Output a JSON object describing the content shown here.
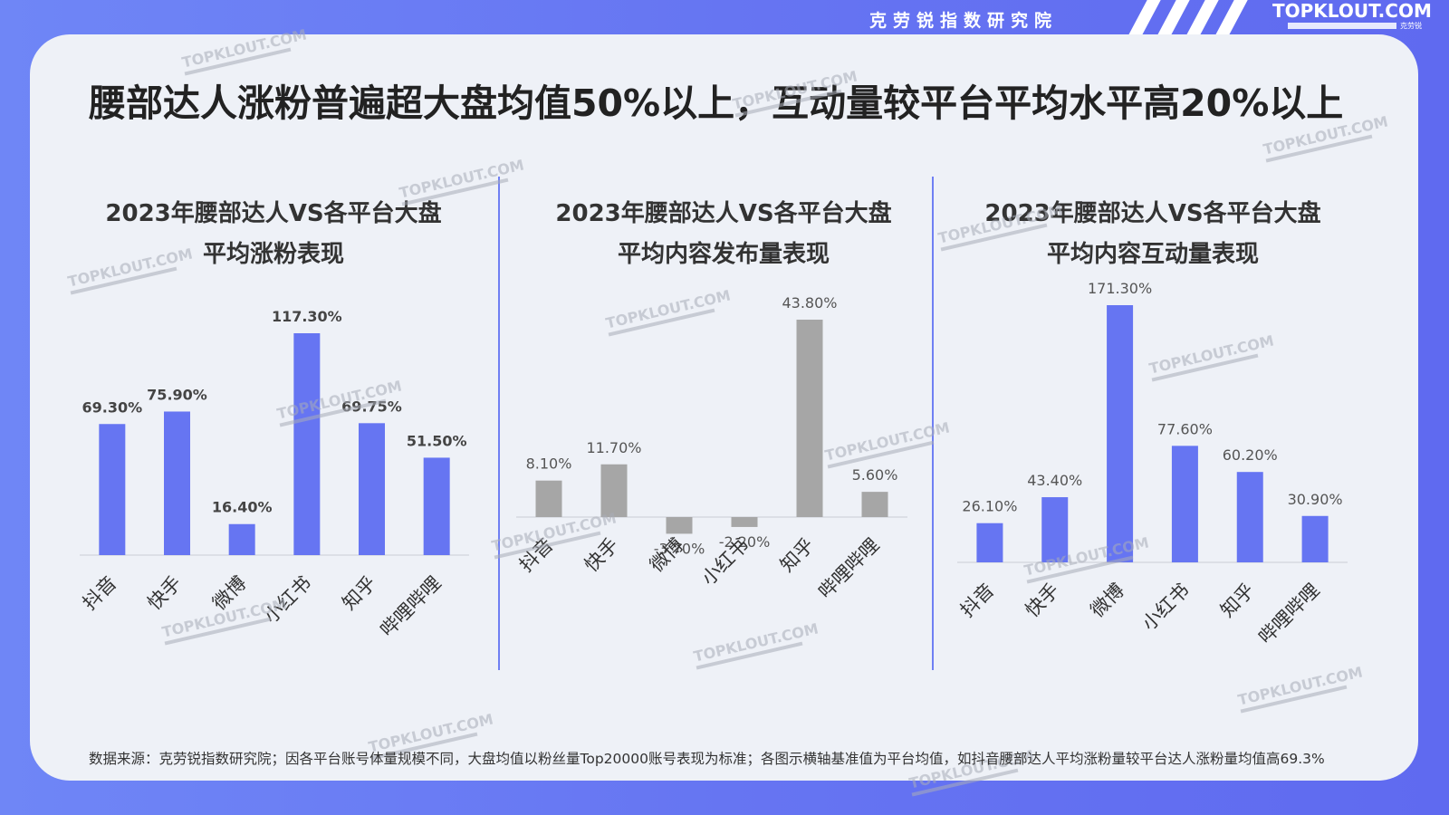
{
  "header": {
    "brand_cn": "克劳锐指数研究院",
    "logo_text": "TOPKLOUT.COM",
    "logo_sub": "克劳锐"
  },
  "page_title": "腰部达人涨粉普遍超大盘均值50%以上，互动量较平台平均水平高20%以上",
  "watermark": "TOPKLOUT.COM",
  "colors": {
    "bg_blue": "#6675f2",
    "bar_blue": "#6675f2",
    "bar_grey": "#a6a6a6",
    "card": "#eef1f7",
    "divider": "#6f7ff3"
  },
  "chart_data": [
    {
      "type": "bar",
      "title_line1": "2023年腰部达人VS各平台大盘",
      "title_line2": "平均涨粉表现",
      "categories": [
        "抖音",
        "快手",
        "微博",
        "小红书",
        "知乎",
        "哔哩哔哩"
      ],
      "values": [
        69.3,
        75.9,
        16.4,
        117.3,
        69.75,
        51.5
      ],
      "labels": [
        "69.30%",
        "75.90%",
        "16.40%",
        "117.30%",
        "69.75%",
        "51.50%"
      ],
      "ylim": [
        0,
        117.3
      ],
      "label_bold": true,
      "color": "#6675f2"
    },
    {
      "type": "bar",
      "title_line1": "2023年腰部达人VS各平台大盘",
      "title_line2": "平均内容发布量表现",
      "categories": [
        "抖音",
        "快手",
        "微博",
        "小红书",
        "知乎",
        "哔哩哔哩"
      ],
      "values": [
        8.1,
        11.7,
        -3.7,
        -2.2,
        43.8,
        5.6
      ],
      "labels": [
        "8.10%",
        "11.70%",
        "-3.70%",
        "-2.20%",
        "43.80%",
        "5.60%"
      ],
      "ylim": [
        -3.7,
        43.8
      ],
      "label_bold": false,
      "color": "#a6a6a6"
    },
    {
      "type": "bar",
      "title_line1": "2023年腰部达人VS各平台大盘",
      "title_line2": "平均内容互动量表现",
      "categories": [
        "抖音",
        "快手",
        "微博",
        "小红书",
        "知乎",
        "哔哩哔哩"
      ],
      "values": [
        26.1,
        43.4,
        171.3,
        77.6,
        60.2,
        30.9
      ],
      "labels": [
        "26.10%",
        "43.40%",
        "171.30%",
        "77.60%",
        "60.20%",
        "30.90%"
      ],
      "ylim": [
        0,
        171.3
      ],
      "label_bold": false,
      "color": "#6675f2"
    }
  ],
  "footnote": "数据来源：克劳锐指数研究院；因各平台账号体量规模不同，大盘均值以粉丝量Top20000账号表现为标准；各图示横轴基准值为平台均值，如抖音腰部达人平均涨粉量较平台达人涨粉量均值高69.3%"
}
